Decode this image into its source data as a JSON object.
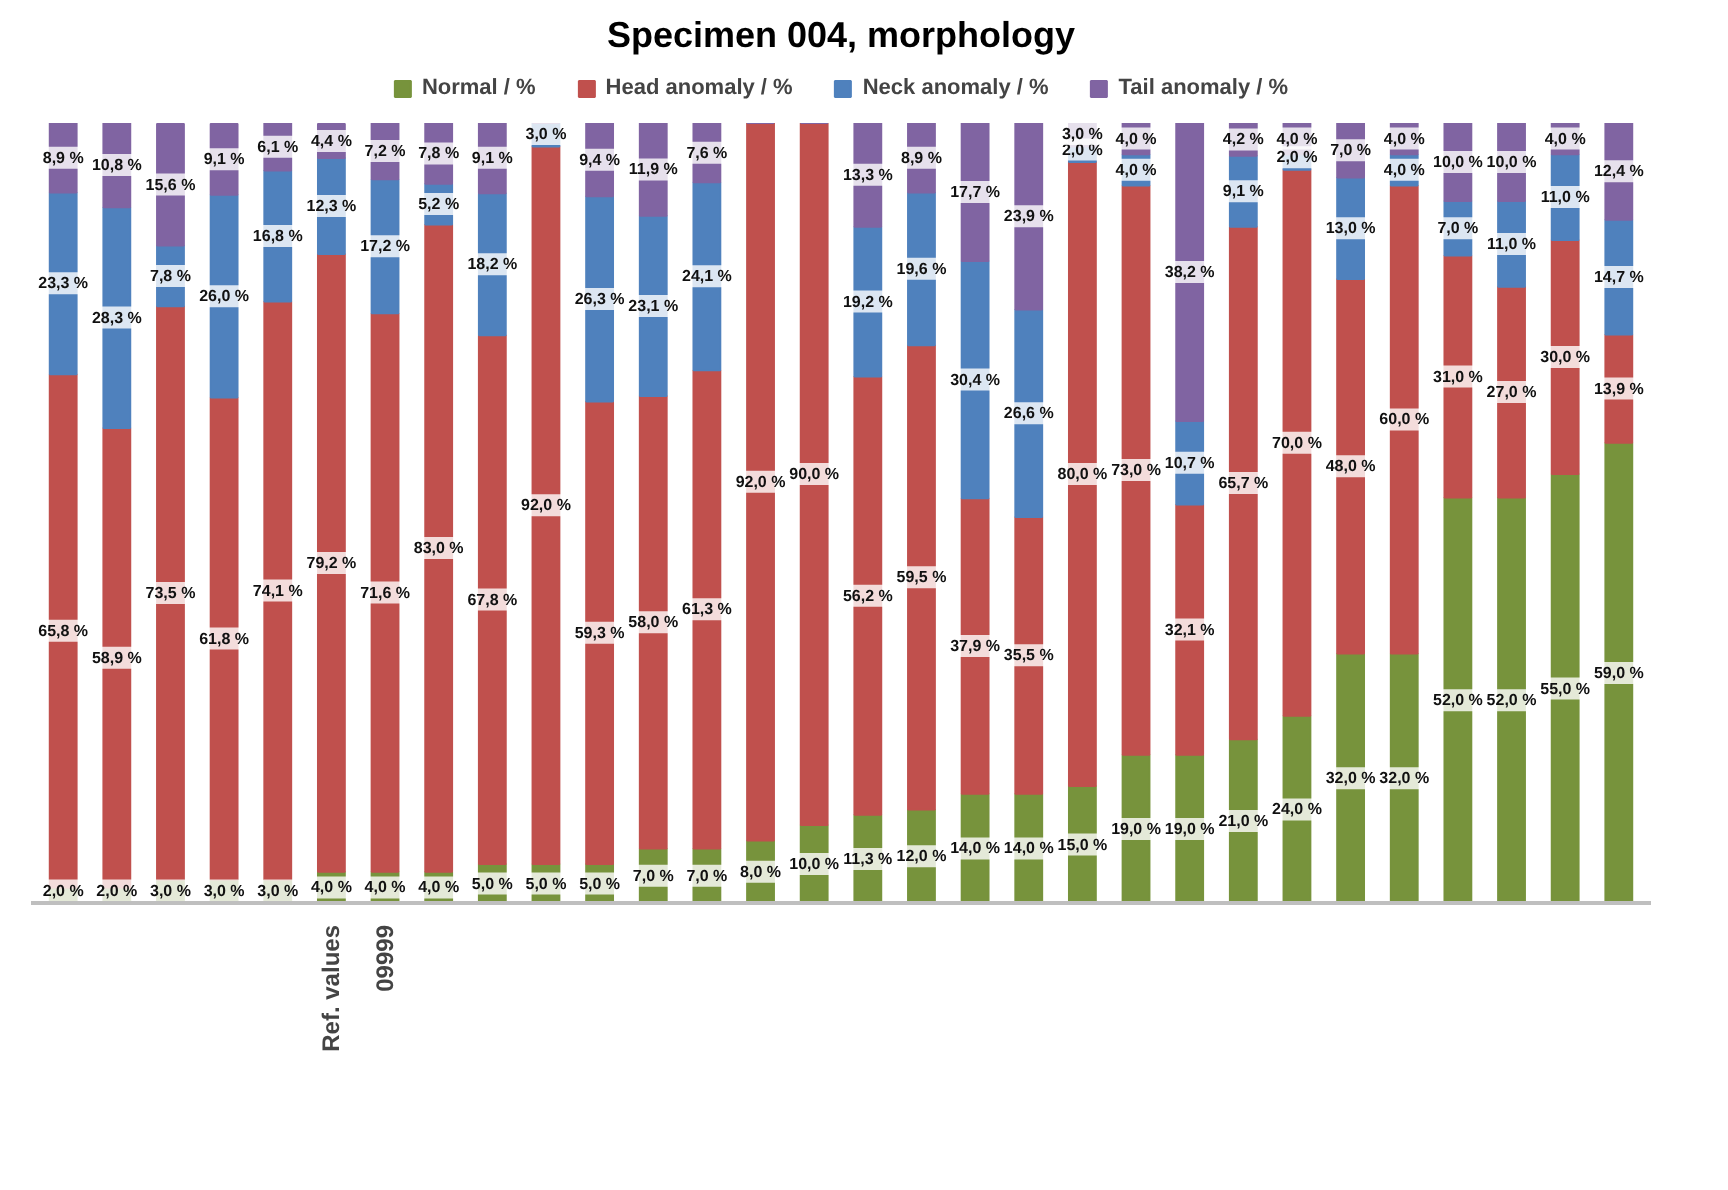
{
  "chart_data": {
    "type": "bar",
    "stacked": true,
    "title": "Specimen 004, morphology",
    "categories": [
      null,
      null,
      null,
      null,
      null,
      "Ref. values",
      "09999",
      null,
      null,
      null,
      null,
      null,
      null,
      null,
      null,
      null,
      null,
      null,
      null,
      null,
      null,
      null,
      null,
      null,
      null,
      null,
      null,
      null,
      null,
      null
    ],
    "ylim": [
      0,
      100
    ],
    "tick_labels": "x",
    "legend": "top",
    "grid": false,
    "series": [
      {
        "name": "Normal / %",
        "color": "#77933c",
        "values": [
          2.0,
          2.0,
          3.0,
          3.0,
          3.0,
          4.0,
          4.0,
          4.0,
          5.0,
          5.0,
          5.0,
          7.0,
          7.0,
          8.0,
          10.0,
          11.3,
          12.0,
          14.0,
          14.0,
          15.0,
          19.0,
          19.0,
          21.0,
          24.0,
          32.0,
          32.0,
          52.0,
          52.0,
          55.0,
          59.0
        ],
        "value_labels": [
          "2,0 %",
          "2,0 %",
          "3,0 %",
          "3,0 %",
          "3,0 %",
          "4,0 %",
          "4,0 %",
          "4,0 %",
          "5,0 %",
          "5,0 %",
          "5,0 %",
          "7,0 %",
          "7,0 %",
          "8,0 %",
          "10,0 %",
          "11,3 %",
          "12,0 %",
          "14,0 %",
          "14,0 %",
          "15,0 %",
          "19,0 %",
          "19,0 %",
          "21,0 %",
          "24,0 %",
          "32,0 %",
          "32,0 %",
          "52,0 %",
          "52,0 %",
          "55,0 %",
          "59,0 %"
        ]
      },
      {
        "name": "Head anomaly / %",
        "color": "#c0504d",
        "values": [
          65.8,
          58.9,
          73.5,
          61.8,
          74.1,
          79.2,
          71.6,
          83.0,
          67.8,
          92.0,
          59.3,
          58.0,
          61.3,
          92.0,
          90.0,
          56.2,
          59.5,
          37.9,
          35.5,
          80.0,
          73.0,
          32.1,
          65.7,
          70.0,
          48.0,
          60.0,
          31.0,
          27.0,
          30.0,
          13.9
        ],
        "value_labels": [
          "65,8 %",
          "58,9 %",
          "73,5 %",
          "61,8 %",
          "74,1 %",
          "79,2 %",
          "71,6 %",
          "83,0 %",
          "67,8 %",
          "92,0 %",
          "59,3 %",
          "58,0 %",
          "61,3 %",
          "92,0 %",
          "90,0 %",
          "56,2 %",
          "59,5 %",
          "37,9 %",
          "35,5 %",
          "80,0 %",
          "73,0 %",
          "32,1 %",
          "65,7 %",
          "70,0 %",
          "48,0 %",
          "60,0 %",
          "31,0 %",
          "27,0 %",
          "30,0 %",
          "13,9 %"
        ]
      },
      {
        "name": "Neck anomaly / %",
        "color": "#4f81bd",
        "values": [
          23.3,
          28.3,
          7.8,
          26.0,
          16.8,
          12.3,
          17.2,
          5.2,
          18.2,
          3.0,
          26.3,
          23.1,
          24.1,
          0,
          0,
          19.2,
          19.6,
          30.4,
          26.6,
          2.0,
          4.0,
          10.7,
          9.1,
          2.0,
          13.0,
          4.0,
          7.0,
          11.0,
          11.0,
          14.7
        ],
        "value_labels": [
          "23,3 %",
          "28,3 %",
          "7,8 %",
          "26,0 %",
          "16,8 %",
          "12,3 %",
          "17,2 %",
          "5,2 %",
          "18,2 %",
          "3,0 %",
          "26,3 %",
          "23,1 %",
          "24,1 %",
          null,
          null,
          "19,2 %",
          "19,6 %",
          "30,4 %",
          "26,6 %",
          "2,0 %",
          "4,0 %",
          "10,7 %",
          "9,1 %",
          "2,0 %",
          "13,0 %",
          "4,0 %",
          "7,0 %",
          "11,0 %",
          "11,0 %",
          "14,7 %"
        ]
      },
      {
        "name": "Tail anomaly / %",
        "color": "#8064a2",
        "values": [
          8.9,
          10.8,
          15.6,
          9.1,
          6.1,
          4.4,
          7.2,
          7.8,
          9.1,
          0,
          9.4,
          11.9,
          7.6,
          0,
          0,
          13.3,
          8.9,
          17.7,
          23.9,
          3.0,
          4.0,
          38.2,
          4.2,
          4.0,
          7.0,
          4.0,
          10.0,
          10.0,
          4.0,
          12.4
        ],
        "value_labels": [
          "8,9 %",
          "10,8 %",
          "15,6 %",
          "9,1 %",
          "6,1 %",
          "4,4 %",
          "7,2 %",
          "7,8 %",
          "9,1 %",
          null,
          "9,4 %",
          "11,9 %",
          "7,6 %",
          null,
          null,
          "13,3 %",
          "8,9 %",
          "17,7 %",
          "23,9 %",
          "3,0 %",
          "4,0 %",
          "38,2 %",
          "4,2 %",
          "4,0 %",
          "7,0 %",
          "4,0 %",
          "10,0 %",
          "10,0 %",
          "4,0 %",
          "12,4 %"
        ]
      }
    ]
  }
}
